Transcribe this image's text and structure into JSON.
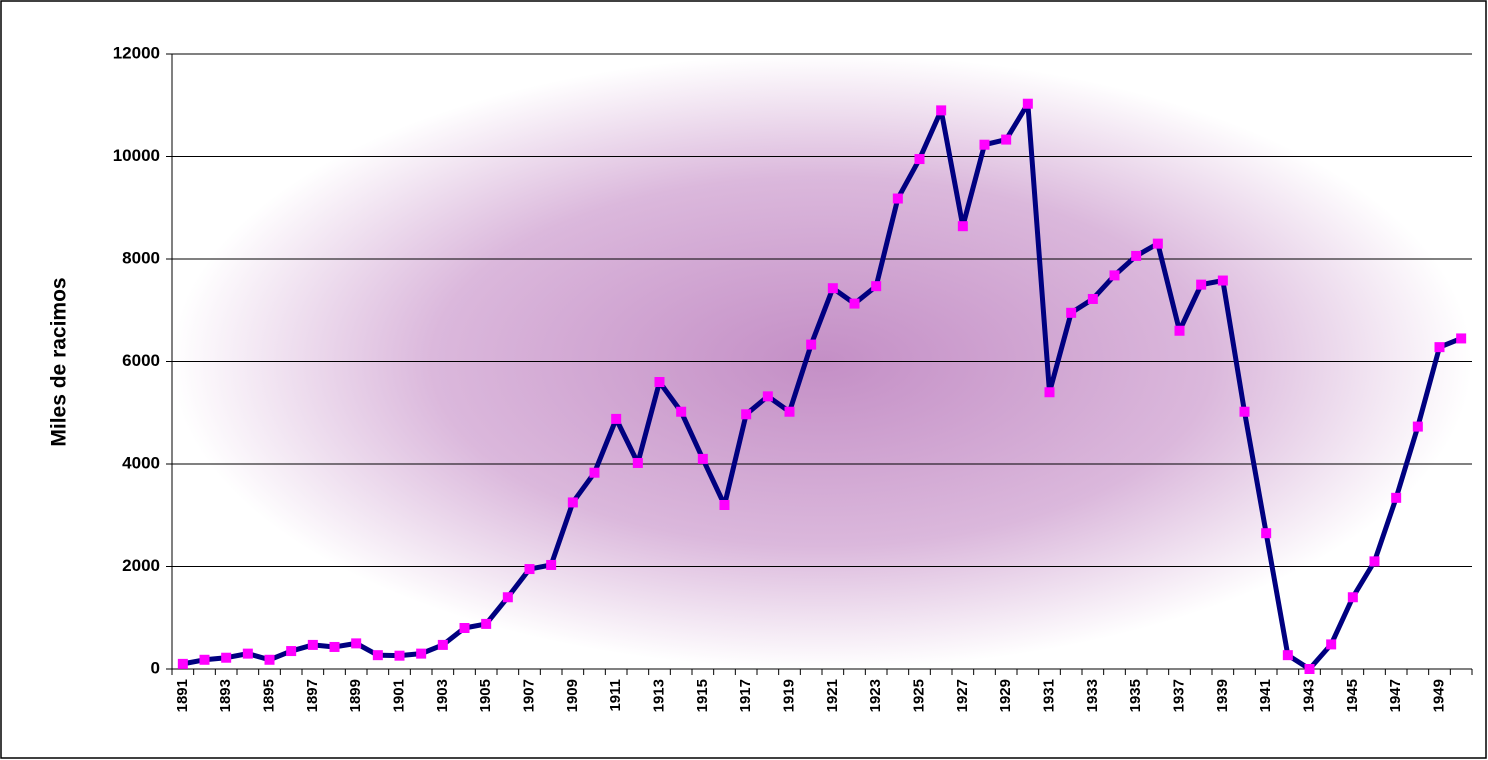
{
  "chart_data": {
    "type": "line",
    "y_label": "Miles de racimos",
    "categories": [
      "1891",
      null,
      "1893",
      null,
      "1895",
      null,
      "1897",
      null,
      "1899",
      null,
      "1901",
      null,
      "1903",
      null,
      "1905",
      null,
      "1907",
      null,
      "1909",
      null,
      "1911",
      null,
      "1913",
      null,
      "1915",
      null,
      "1917",
      null,
      "1919",
      null,
      "1921",
      null,
      "1923",
      null,
      "1925",
      null,
      "1927",
      null,
      "1929",
      null,
      "1931",
      null,
      "1933",
      null,
      "1935",
      null,
      "1937",
      null,
      "1939",
      null,
      "1941",
      null,
      "1943",
      null,
      "1945",
      null,
      "1947",
      null,
      "1949",
      null
    ],
    "series": [
      {
        "color": "#000080",
        "marker_color": "#ff00ff",
        "values": [
          100,
          180,
          220,
          300,
          180,
          350,
          470,
          430,
          500,
          270,
          260,
          300,
          470,
          800,
          880,
          1400,
          1950,
          2030,
          3250,
          3830,
          4880,
          4020,
          5600,
          5020,
          4100,
          3200,
          4970,
          5320,
          5020,
          6330,
          7430,
          7130,
          7470,
          9180,
          9950,
          10900,
          8640,
          10230,
          10330,
          11030,
          5400,
          6950,
          7220,
          7680,
          8060,
          8300,
          6600,
          7500,
          7580,
          5020,
          2650,
          270,
          0,
          480,
          1400,
          2100,
          3340,
          4730,
          6280,
          6450
        ]
      }
    ],
    "ylim": [
      0,
      12000
    ],
    "yticks": [
      0,
      2000,
      4000,
      6000,
      8000,
      10000,
      12000
    ],
    "grid": true
  }
}
